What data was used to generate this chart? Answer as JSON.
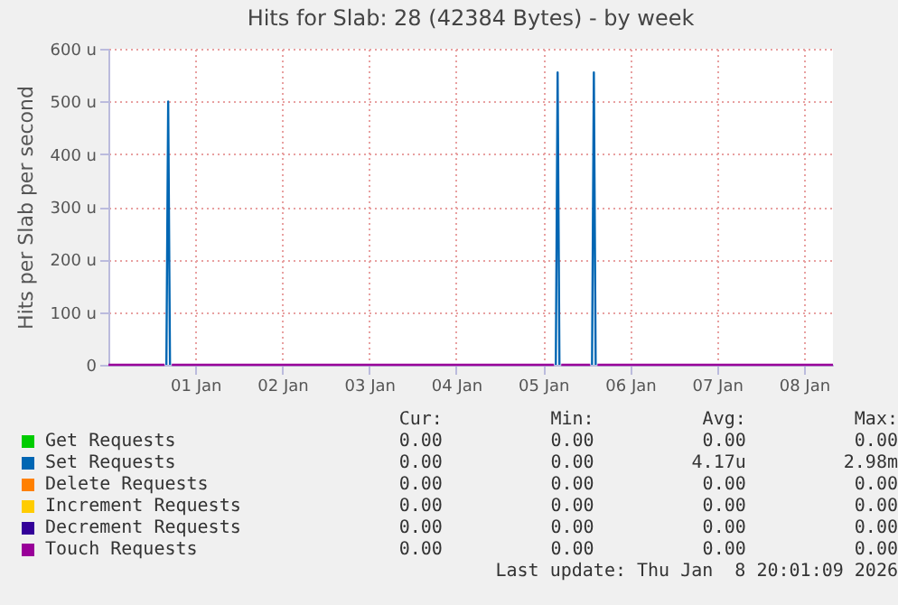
{
  "chart_data": {
    "type": "line",
    "title": "Hits for Slab: 28 (42384 Bytes) - by week",
    "ylabel": "Hits per Slab per second",
    "series": [
      {
        "name": "Get Requests",
        "color": "#00cc00"
      },
      {
        "name": "Set Requests",
        "color": "#0066b3",
        "x": [
          "2026-01-01T04:00",
          "2026-01-01T04:30",
          "2026-01-01T05:00",
          "2026-01-03T00:00",
          "2026-01-05T15:30",
          "2026-01-05T16:00",
          "2026-01-05T16:30",
          "2026-01-05T21:00",
          "2026-01-06T01:30",
          "2026-01-06T02:00",
          "2026-01-06T02:30"
        ],
        "values": [
          0,
          500,
          0,
          null,
          0,
          555,
          0,
          null,
          0,
          555,
          0
        ]
      },
      {
        "name": "Delete Requests",
        "color": "#ff8000"
      },
      {
        "name": "Increment Requests",
        "color": "#ffcc00"
      },
      {
        "name": "Decrement Requests",
        "color": "#330099"
      },
      {
        "name": "Touch Requests",
        "color": "#990099",
        "x": [
          "2025-12-31T12:00",
          "2026-01-01T03:30",
          "2026-01-01T04:30",
          "2026-01-01T05:30",
          "2026-01-05T15:00",
          "2026-01-05T16:00",
          "2026-01-05T17:00",
          "2026-01-06T01:00",
          "2026-01-06T02:00",
          "2026-01-06T03:00",
          "2026-01-08T20:00"
        ],
        "values": [
          0,
          0,
          null,
          0,
          0,
          null,
          0,
          0,
          null,
          0,
          0
        ]
      }
    ],
    "xlim": [
      "2025-12-31T12:00",
      "2026-01-08T20:00"
    ],
    "xticks": [
      {
        "value": "2026-01-01T12:00",
        "label": "01 Jan"
      },
      {
        "value": "2026-01-02T12:00",
        "label": "02 Jan"
      },
      {
        "value": "2026-01-03T12:00",
        "label": "03 Jan"
      },
      {
        "value": "2026-01-04T12:00",
        "label": "04 Jan"
      },
      {
        "value": "2026-01-05T12:00",
        "label": "05 Jan"
      },
      {
        "value": "2026-01-06T12:00",
        "label": "06 Jan"
      },
      {
        "value": "2026-01-07T12:00",
        "label": "07 Jan"
      },
      {
        "value": "2026-01-08T12:00",
        "label": "08 Jan"
      }
    ],
    "ylim": [
      0,
      600
    ],
    "yticks": [
      {
        "value": 0,
        "label": "0"
      },
      {
        "value": 100,
        "label": "100 u"
      },
      {
        "value": 200,
        "label": "200 u"
      },
      {
        "value": 300,
        "label": "300 u"
      },
      {
        "value": 400,
        "label": "400 u"
      },
      {
        "value": 500,
        "label": "500 u"
      },
      {
        "value": 600,
        "label": "600 u"
      }
    ],
    "grid": true,
    "legend": "bottom",
    "marker": "none",
    "line_style": "solid",
    "annotations": [
      "Cur:",
      "Min:",
      "Avg:",
      "Max:",
      "0.00",
      "0.00",
      "0.00",
      "0.00",
      "0.00",
      "0.00",
      "4.17u",
      "2.98m",
      "0.00",
      "0.00",
      "0.00",
      "0.00",
      "0.00",
      "0.00",
      "0.00",
      "0.00",
      "0.00",
      "0.00",
      "0.00",
      "0.00",
      "0.00",
      "0.00",
      "0.00",
      "0.00",
      "Last update: Thu Jan  8 20:01:09 2026"
    ]
  }
}
